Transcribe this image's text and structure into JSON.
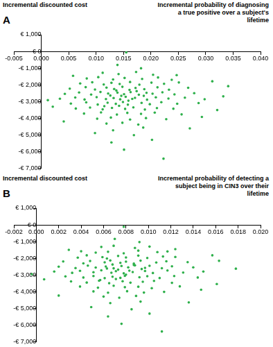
{
  "chart_data": [
    {
      "type": "scatter",
      "title": "A",
      "y_label": "Incremental discounted cost",
      "x_label": "Incremental probability of diagnosing a true positive over a subject's lifetime",
      "color": "#2eb04b",
      "marker": "circle",
      "grid": false,
      "xlim": [
        -0.005,
        0.04
      ],
      "xticks": [
        -0.005,
        {
          "value": 0,
          "label": "0.000"
        },
        0.005,
        {
          "value": 0.01,
          "label": "0.010"
        },
        0.015,
        {
          "value": 0.02,
          "label": "0.020"
        },
        0.025,
        {
          "value": 0.03,
          "label": "0.030"
        },
        0.035,
        {
          "value": 0.04,
          "label": "0.040"
        }
      ],
      "ylim": [
        -7000,
        1000
      ],
      "yticks": [
        {
          "value": 1000,
          "label": "€ 1,000"
        },
        {
          "value": 0,
          "label": "€ 0"
        },
        {
          "value": -1000,
          "label": "-€ 1,000"
        },
        {
          "value": -2000,
          "label": "-€ 2,000"
        },
        {
          "value": -3000,
          "label": "-€ 3,000"
        },
        {
          "value": -4000,
          "label": "-€ 4,000"
        },
        {
          "value": -5000,
          "label": "-€ 5,000"
        },
        {
          "value": -6000,
          "label": "-€ 6,000"
        },
        {
          "value": -7000,
          "label": "-€ 7,000"
        }
      ],
      "x": [
        0.0112,
        0.0141,
        0.0173,
        0.0204,
        0.0083,
        0.0104,
        0.0131,
        0.0152,
        0.0184,
        0.0213,
        0.0238,
        0.0071,
        0.0093,
        0.0114,
        0.0128,
        0.0143,
        0.0162,
        0.0179,
        0.0201,
        0.0224,
        0.0251,
        0.0052,
        0.0081,
        0.0098,
        0.0119,
        0.0133,
        0.0148,
        0.0161,
        0.0172,
        0.0188,
        0.0212,
        0.0233,
        0.0268,
        0.0043,
        0.0069,
        0.0091,
        0.0108,
        0.0122,
        0.0139,
        0.0151,
        0.0163,
        0.0178,
        0.0192,
        0.0203,
        0.0221,
        0.0243,
        0.0279,
        0.0034,
        0.0062,
        0.0079,
        0.0101,
        0.0118,
        0.0132,
        0.0144,
        0.0154,
        0.0166,
        0.0171,
        0.0193,
        0.0209,
        0.0232,
        0.0262,
        0.0298,
        0.0054,
        0.0082,
        0.0103,
        0.0121,
        0.0136,
        0.0149,
        0.0158,
        0.0183,
        0.0198,
        0.0219,
        0.0248,
        0.0287,
        0.0063,
        0.0089,
        0.0112,
        0.0129,
        0.0153,
        0.0168,
        0.0189,
        0.0211,
        0.0241,
        0.0078,
        0.0109,
        0.0138,
        0.0157,
        0.0182,
        0.0207,
        0.0256,
        0.0102,
        0.0127,
        0.0162,
        0.0191,
        0.0228,
        0.0119,
        0.0148,
        0.0177,
        0.0131,
        0.0169,
        0.0202,
        0.0151,
        0.0223,
        0.0271,
        0.0341,
        0.0332,
        0.0012,
        0.0021,
        0.0312,
        0.0139,
        0.0182,
        0.0293,
        0.0098,
        0.0041,
        0.0155,
        0.0128,
        0.0186,
        0.0247,
        0.0058,
        0.0321,
        0.0146,
        0.0137,
        0.0159,
        0.0126,
        0.0174,
        0.0115,
        0.0187,
        0.0142
      ],
      "values": [
        -1280,
        -1360,
        -1230,
        -1400,
        -1620,
        -1540,
        -1680,
        -1590,
        -1650,
        -1560,
        -1700,
        -1920,
        -1850,
        -1980,
        -1880,
        -1950,
        -1830,
        -1990,
        -1870,
        -1940,
        -1860,
        -2230,
        -2140,
        -2280,
        -2170,
        -2250,
        -2120,
        -2300,
        -2190,
        -2260,
        -2150,
        -2290,
        -2180,
        -2540,
        -2460,
        -2580,
        -2430,
        -2520,
        -2470,
        -2560,
        -2440,
        -2590,
        -2480,
        -2530,
        -2450,
        -2570,
        -2500,
        -2830,
        -2760,
        -2880,
        -2740,
        -2850,
        -2790,
        -2870,
        -2720,
        -2840,
        -2780,
        -2890,
        -2750,
        -2820,
        -2770,
        -2860,
        -3120,
        -3050,
        -3180,
        -3070,
        -3140,
        -3030,
        -3190,
        -3080,
        -3160,
        -3040,
        -3130,
        -3090,
        -3420,
        -3360,
        -3470,
        -3380,
        -3440,
        -3350,
        -3480,
        -3390,
        -3430,
        -3720,
        -3650,
        -3780,
        -3680,
        -3740,
        -3660,
        -3770,
        -4030,
        -3960,
        -4080,
        -3990,
        -4060,
        -4320,
        -4270,
        -4380,
        -4720,
        -5010,
        -5290,
        -5880,
        -6420,
        -4610,
        -2080,
        -2690,
        -2920,
        -3310,
        -1790,
        -810,
        -1010,
        -3920,
        -4890,
        -4190,
        -60,
        -5450,
        -4560,
        -1420,
        -1460,
        -3510,
        -2660,
        -2340,
        -2950,
        -2640,
        -2380,
        -3280,
        -2660,
        -3260
      ]
    },
    {
      "type": "scatter",
      "title": "B",
      "y_label": "Incremental discounted cost",
      "x_label": "Incremental probability of detecting a subject being in CIN3 over their lifetime",
      "color": "#2eb04b",
      "marker": "circle",
      "grid": false,
      "xlim": [
        -0.002,
        0.02
      ],
      "xticks": [
        -0.002,
        {
          "value": 0,
          "label": "0.000"
        },
        0.002,
        0.004,
        0.006,
        0.008,
        {
          "value": 0.01,
          "label": "0.010"
        },
        0.012,
        0.014,
        0.016,
        0.018,
        {
          "value": 0.02,
          "label": "0.020"
        }
      ],
      "ylim": [
        -7000,
        1000
      ],
      "yticks": [
        {
          "value": 1000,
          "label": "€ 1,000"
        },
        {
          "value": 0,
          "label": "€ 0"
        },
        {
          "value": -1000,
          "label": "-€ 1,000"
        },
        {
          "value": -2000,
          "label": "-€ 2,000"
        },
        {
          "value": -3000,
          "label": "-€ 3,000"
        },
        {
          "value": -4000,
          "label": "-€ 4,000"
        },
        {
          "value": -5000,
          "label": "-€ 5,000"
        },
        {
          "value": -6000,
          "label": "-€ 6,000"
        },
        {
          "value": -7000,
          "label": "-€ 7,000"
        }
      ],
      "x": [
        0.0058,
        0.0069,
        0.0088,
        0.0101,
        0.004,
        0.0053,
        0.0064,
        0.0078,
        0.0091,
        0.0108,
        0.0117,
        0.0037,
        0.0045,
        0.0059,
        0.0063,
        0.0073,
        0.008,
        0.0091,
        0.0099,
        0.0113,
        0.0124,
        0.0024,
        0.0042,
        0.0048,
        0.0061,
        0.0066,
        0.0075,
        0.008,
        0.0087,
        0.0093,
        0.0107,
        0.0116,
        0.0135,
        0.002,
        0.0035,
        0.0046,
        0.0053,
        0.0062,
        0.0069,
        0.0076,
        0.0082,
        0.0088,
        0.0097,
        0.0101,
        0.0112,
        0.0121,
        0.014,
        0.0016,
        0.0032,
        0.0039,
        0.0051,
        0.0058,
        0.0067,
        0.0071,
        0.0078,
        0.0083,
        0.0086,
        0.0097,
        0.0104,
        0.0117,
        0.0131,
        0.0149,
        0.0026,
        0.0042,
        0.0051,
        0.0061,
        0.0068,
        0.0075,
        0.0079,
        0.0092,
        0.0099,
        0.011,
        0.0123,
        0.0144,
        0.0031,
        0.0045,
        0.0056,
        0.0065,
        0.0077,
        0.0084,
        0.0095,
        0.0105,
        0.0121,
        0.0039,
        0.0055,
        0.0069,
        0.0079,
        0.0091,
        0.0103,
        0.0128,
        0.0051,
        0.0064,
        0.0081,
        0.0096,
        0.0114,
        0.006,
        0.0074,
        0.0089,
        0.0066,
        0.0085,
        0.0101,
        0.0076,
        0.0112,
        0.0136,
        0.0163,
        0.0178,
        -0.0004,
        0.0007,
        0.0157,
        0.007,
        0.0092,
        0.0147,
        0.0049,
        0.002,
        0.0078,
        0.0064,
        0.0093,
        0.0124,
        0.0029,
        0.0161,
        0.0073,
        0.0068,
        0.008,
        0.0063,
        0.0087,
        0.0057,
        0.0094,
        0.0071
      ],
      "values": [
        -1320,
        -1250,
        -1380,
        -1300,
        -1580,
        -1660,
        -1610,
        -1700,
        -1540,
        -1630,
        -1590,
        -1960,
        -1820,
        -1930,
        -2010,
        -1860,
        -1950,
        -1840,
        -1980,
        -1890,
        -1920,
        -2190,
        -2300,
        -2160,
        -2240,
        -2130,
        -2270,
        -2200,
        -2310,
        -2140,
        -2250,
        -2180,
        -2230,
        -2500,
        -2580,
        -2440,
        -2550,
        -2490,
        -2600,
        -2460,
        -2540,
        -2420,
        -2570,
        -2450,
        -2590,
        -2480,
        -2540,
        -2790,
        -2870,
        -2750,
        -2830,
        -2720,
        -2860,
        -2770,
        -2900,
        -2740,
        -2820,
        -2760,
        -2880,
        -2730,
        -2850,
        -2790,
        -3080,
        -3150,
        -3060,
        -3190,
        -3100,
        -3170,
        -3050,
        -3130,
        -3070,
        -3180,
        -3060,
        -3150,
        -3380,
        -3450,
        -3340,
        -3490,
        -3370,
        -3460,
        -3400,
        -3350,
        -3470,
        -3690,
        -3760,
        -3640,
        -3730,
        -3700,
        -3790,
        -3680,
        -3980,
        -4060,
        -3970,
        -4050,
        -4010,
        -4290,
        -4360,
        -4250,
        -4680,
        -5050,
        -5310,
        -5920,
        -6380,
        -4640,
        -2150,
        -2620,
        -2950,
        -3260,
        -1820,
        -840,
        -1030,
        -3880,
        -4920,
        -4230,
        -110,
        -5480,
        -4590,
        -1450,
        -1490,
        -3540,
        -2680,
        -2370,
        -2980,
        -2610,
        -2400,
        -3300,
        -2640,
        -3240
      ]
    }
  ]
}
